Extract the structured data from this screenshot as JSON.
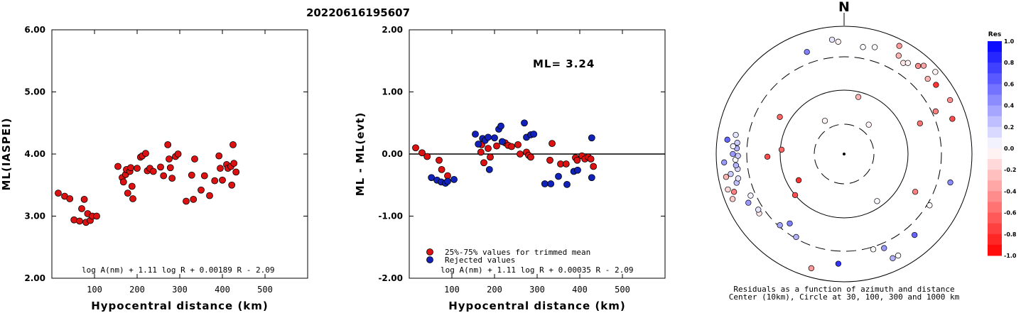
{
  "title": "20220616195607",
  "colors": {
    "accepted": "#dd1111",
    "rejected": "#1122bb",
    "edge": "#000000"
  },
  "chart_data": [
    {
      "type": "scatter",
      "xlabel": "Hypocentral distance (km)",
      "ylabel": "ML(IASPEI)",
      "xlim": [
        0,
        600
      ],
      "ylim": [
        2.0,
        6.0
      ],
      "x_ticks": [
        "100",
        "200",
        "300",
        "400",
        "500"
      ],
      "y_ticks": [
        "2.00",
        "3.00",
        "4.00",
        "5.00",
        "6.00"
      ],
      "formula": "log A(nm) + 1.11 log R + 0.00189 R - 2.09",
      "series": [
        {
          "points": [
            [
              15,
              3.37
            ],
            [
              30,
              3.32
            ],
            [
              42,
              3.28
            ],
            [
              52,
              2.94
            ],
            [
              65,
              2.92
            ],
            [
              70,
              3.12
            ],
            [
              76,
              3.27
            ],
            [
              80,
              2.9
            ],
            [
              84,
              3.04
            ],
            [
              90,
              2.93
            ],
            [
              95,
              3.0
            ],
            [
              105,
              3.0
            ],
            [
              155,
              3.8
            ],
            [
              165,
              3.62
            ],
            [
              168,
              3.55
            ],
            [
              173,
              3.67
            ],
            [
              175,
              3.75
            ],
            [
              178,
              3.37
            ],
            [
              183,
              3.72
            ],
            [
              185,
              3.78
            ],
            [
              188,
              3.48
            ],
            [
              190,
              3.28
            ],
            [
              200,
              3.77
            ],
            [
              208,
              3.95
            ],
            [
              212,
              3.97
            ],
            [
              220,
              4.01
            ],
            [
              224,
              3.73
            ],
            [
              230,
              3.77
            ],
            [
              238,
              3.72
            ],
            [
              255,
              3.79
            ],
            [
              262,
              3.65
            ],
            [
              272,
              4.15
            ],
            [
              275,
              3.92
            ],
            [
              278,
              3.78
            ],
            [
              282,
              3.61
            ],
            [
              290,
              3.96
            ],
            [
              296,
              4.0
            ],
            [
              315,
              3.24
            ],
            [
              328,
              3.66
            ],
            [
              332,
              3.27
            ],
            [
              335,
              3.92
            ],
            [
              350,
              3.42
            ],
            [
              358,
              3.65
            ],
            [
              370,
              3.33
            ],
            [
              382,
              3.57
            ],
            [
              392,
              3.97
            ],
            [
              395,
              3.77
            ],
            [
              400,
              3.58
            ],
            [
              410,
              3.83
            ],
            [
              413,
              3.77
            ],
            [
              420,
              3.8
            ],
            [
              422,
              3.5
            ],
            [
              425,
              4.15
            ],
            [
              427,
              3.85
            ],
            [
              432,
              3.71
            ]
          ]
        }
      ]
    },
    {
      "type": "scatter",
      "xlabel": "Hypocentral distance (km)",
      "ylabel": "ML - ML(evt)",
      "xlim": [
        0,
        600
      ],
      "ylim": [
        -2.0,
        2.0
      ],
      "x_ticks": [
        "100",
        "200",
        "300",
        "400",
        "500"
      ],
      "y_ticks": [
        "-2.00",
        "-1.00",
        "0.00",
        "1.00",
        "2.00"
      ],
      "annotation": "ML= 3.24",
      "legend": [
        "25%-75% values for trimmed mean",
        "Rejected values"
      ],
      "formula": "log A(nm) + 1.11 log R + 0.00035 R - 2.09",
      "series": [
        {
          "name": "25%-75% values for trimmed mean",
          "points": [
            [
              15,
              0.1
            ],
            [
              30,
              0.02
            ],
            [
              42,
              -0.04
            ],
            [
              70,
              -0.1
            ],
            [
              76,
              -0.25
            ],
            [
              90,
              -0.35
            ],
            [
              168,
              0.03
            ],
            [
              170,
              0.15
            ],
            [
              175,
              -0.14
            ],
            [
              185,
              0.09
            ],
            [
              190,
              -0.05
            ],
            [
              205,
              0.13
            ],
            [
              225,
              0.18
            ],
            [
              232,
              0.14
            ],
            [
              240,
              0.12
            ],
            [
              255,
              0.15
            ],
            [
              260,
              0.0
            ],
            [
              275,
              0.03
            ],
            [
              280,
              -0.02
            ],
            [
              285,
              -0.05
            ],
            [
              330,
              -0.1
            ],
            [
              335,
              0.17
            ],
            [
              355,
              -0.16
            ],
            [
              368,
              -0.16
            ],
            [
              390,
              -0.06
            ],
            [
              394,
              -0.1
            ],
            [
              405,
              -0.03
            ],
            [
              412,
              -0.08
            ],
            [
              420,
              -0.05
            ],
            [
              426,
              -0.08
            ],
            [
              432,
              -0.2
            ]
          ]
        },
        {
          "name": "Rejected values",
          "points": [
            [
              52,
              -0.38
            ],
            [
              65,
              -0.42
            ],
            [
              75,
              -0.45
            ],
            [
              85,
              -0.47
            ],
            [
              90,
              -0.44
            ],
            [
              105,
              -0.41
            ],
            [
              155,
              0.32
            ],
            [
              162,
              0.16
            ],
            [
              172,
              0.25
            ],
            [
              178,
              0.22
            ],
            [
              185,
              0.27
            ],
            [
              188,
              -0.25
            ],
            [
              200,
              0.26
            ],
            [
              210,
              0.4
            ],
            [
              215,
              0.45
            ],
            [
              218,
              0.2
            ],
            [
              270,
              0.5
            ],
            [
              275,
              0.27
            ],
            [
              285,
              0.31
            ],
            [
              292,
              0.32
            ],
            [
              318,
              -0.48
            ],
            [
              332,
              -0.48
            ],
            [
              350,
              -0.36
            ],
            [
              370,
              -0.49
            ],
            [
              386,
              -0.28
            ],
            [
              395,
              -0.26
            ],
            [
              428,
              0.26
            ],
            [
              428,
              -0.38
            ]
          ]
        }
      ]
    },
    {
      "type": "polar_scatter",
      "north_label": "N",
      "caption_line1": "Residuals as a function of azimuth and distance",
      "caption_line2": "Center (10km), Circle at 30, 100, 300 and 1000 km",
      "rings_km": [
        30,
        100,
        300,
        1000
      ],
      "colorbar_title": "Res",
      "colorbar_ticks": [
        "1.0",
        "0.8",
        "0.6",
        "0.4",
        "0.2",
        "0.0",
        "-0.2",
        "-0.4",
        "-0.6",
        "-0.8",
        "-1.0"
      ],
      "points": [
        {
          "az": -6,
          "r": 0.9,
          "res": 0.1
        },
        {
          "az": -20,
          "r": 0.85,
          "res": 0.5
        },
        {
          "az": -3,
          "r": 0.88,
          "res": -0.05
        },
        {
          "az": 10,
          "r": 0.85,
          "res": 0.02
        },
        {
          "az": 16,
          "r": 0.87,
          "res": 0.02
        },
        {
          "az": 27,
          "r": 0.95,
          "res": -0.4
        },
        {
          "az": 29,
          "r": 0.88,
          "res": -0.3
        },
        {
          "az": 33,
          "r": 0.85,
          "res": -0.1
        },
        {
          "az": 35,
          "r": 0.87,
          "res": -0.05
        },
        {
          "az": 40,
          "r": 0.9,
          "res": -0.45
        },
        {
          "az": 42,
          "r": 0.93,
          "res": -0.35
        },
        {
          "az": 48,
          "r": 0.88,
          "res": -0.3
        },
        {
          "az": 48,
          "r": 0.96,
          "res": -0.05
        },
        {
          "az": 53,
          "r": 0.9,
          "res": -0.8
        },
        {
          "az": 63,
          "r": 0.93,
          "res": -0.45
        },
        {
          "az": 65,
          "r": 0.79,
          "res": -0.5
        },
        {
          "az": 72,
          "r": 0.89,
          "res": -0.7
        },
        {
          "az": 105,
          "r": 0.86,
          "res": 0.45
        },
        {
          "az": 121,
          "r": 0.78,
          "res": -0.02
        },
        {
          "az": 139,
          "r": 0.84,
          "res": 0.6
        },
        {
          "az": 152,
          "r": 0.9,
          "res": 0.02
        },
        {
          "az": 157,
          "r": 0.8,
          "res": 0.4
        },
        {
          "az": 163,
          "r": 0.78,
          "res": 0.02
        },
        {
          "az": 183,
          "r": 0.86,
          "res": 0.8
        },
        {
          "az": 196,
          "r": 0.93,
          "res": -0.4
        },
        {
          "az": 210,
          "r": 0.75,
          "res": 0.3
        },
        {
          "az": 218,
          "r": 0.69,
          "res": 0.5
        },
        {
          "az": 222,
          "r": 0.75,
          "res": 0.35
        },
        {
          "az": 235,
          "r": 0.81,
          "res": -0.1
        },
        {
          "az": 237,
          "r": 0.8,
          "res": 0.1
        },
        {
          "az": 243,
          "r": 0.84,
          "res": 0.4
        },
        {
          "az": 246,
          "r": 0.8,
          "res": 0.05
        },
        {
          "az": 248,
          "r": 0.94,
          "res": -0.2
        },
        {
          "az": 251,
          "r": 0.91,
          "res": -0.5
        },
        {
          "az": 253,
          "r": 0.95,
          "res": -0.15
        },
        {
          "az": 255,
          "r": 0.87,
          "res": 0.25
        },
        {
          "az": 257,
          "r": 0.85,
          "res": 0.1
        },
        {
          "az": 259,
          "r": 0.94,
          "res": -0.3
        },
        {
          "az": 260,
          "r": 0.9,
          "res": 0.2
        },
        {
          "az": 262,
          "r": 0.84,
          "res": 0.15
        },
        {
          "az": 264,
          "r": 0.85,
          "res": 0.3
        },
        {
          "az": 266,
          "r": 0.94,
          "res": 0.4
        },
        {
          "az": 267,
          "r": 0.85,
          "res": 0.02
        },
        {
          "az": 269,
          "r": 0.83,
          "res": 0.2
        },
        {
          "az": 270,
          "r": 0.87,
          "res": 0.4
        },
        {
          "az": 273,
          "r": 0.84,
          "res": 0.3
        },
        {
          "az": 274,
          "r": 0.87,
          "res": 0.05
        },
        {
          "az": 276,
          "r": 0.84,
          "res": 0.2
        },
        {
          "az": 277,
          "r": 0.92,
          "res": 0.6
        },
        {
          "az": 280,
          "r": 0.86,
          "res": 0.1
        },
        {
          "az": 240,
          "r": 0.41,
          "res": -0.8
        },
        {
          "az": 230,
          "r": 0.5,
          "res": -0.7
        },
        {
          "az": 268,
          "r": 0.6,
          "res": -0.7
        },
        {
          "az": 274,
          "r": 0.49,
          "res": -0.6
        },
        {
          "az": 300,
          "r": 0.58,
          "res": -0.6
        },
        {
          "az": 330,
          "r": 0.3,
          "res": -0.05
        },
        {
          "az": 40,
          "r": 0.3,
          "res": -0.05
        },
        {
          "az": 68,
          "r": 0.64,
          "res": -0.55
        },
        {
          "az": 145,
          "r": 0.45,
          "res": 0.02
        },
        {
          "az": 118,
          "r": 0.63,
          "res": -0.5
        },
        {
          "az": 14,
          "r": 0.46,
          "res": -0.3
        },
        {
          "az": 155,
          "r": 0.9,
          "res": 0.3
        }
      ]
    }
  ]
}
